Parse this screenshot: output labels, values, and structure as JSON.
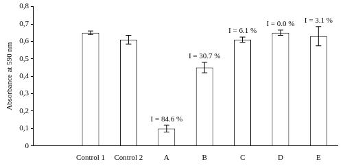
{
  "chart_data": {
    "type": "bar",
    "y_label": "Absorbance at 590 nm",
    "categories": [
      null,
      "Control 1",
      "Control 2",
      "A",
      "B",
      "C",
      "D",
      "E"
    ],
    "values": [
      null,
      0.65,
      0.61,
      0.1,
      0.45,
      0.61,
      0.65,
      0.63
    ],
    "errors": [
      null,
      0.01,
      0.025,
      0.02,
      0.03,
      0.015,
      0.015,
      0.055
    ],
    "annotations": [
      null,
      null,
      null,
      "I = 84.6 %",
      "I = 30.7 %",
      "I = 6.1 %",
      "I = 0.0 %",
      "I = 3.1 %"
    ],
    "color": "#ffffff",
    "ylim": [
      0,
      0.8
    ],
    "yticks": [
      0,
      {
        "value": 0.1,
        "label": "0,1"
      },
      {
        "value": 0.2,
        "label": "0,2"
      },
      {
        "value": 0.3,
        "label": "0,3"
      },
      {
        "value": 0.4,
        "label": "0,4"
      },
      {
        "value": 0.5,
        "label": "0,5"
      },
      {
        "value": 0.6,
        "label": "0,6"
      },
      {
        "value": 0.7,
        "label": "0,7"
      },
      {
        "value": 0.8,
        "label": "0,8"
      }
    ],
    "grid": false
  }
}
